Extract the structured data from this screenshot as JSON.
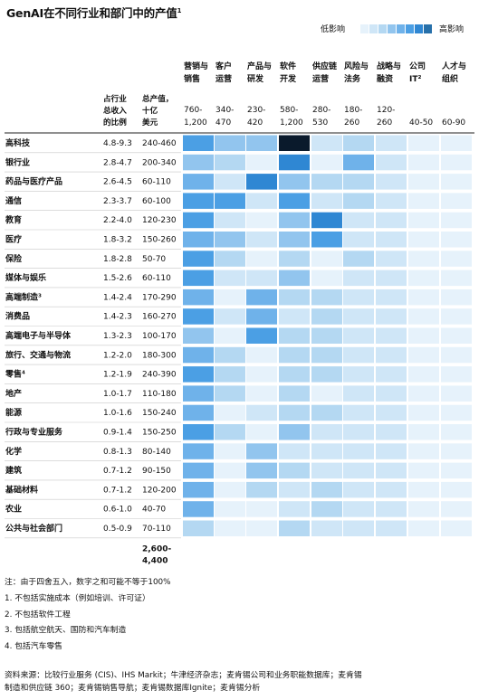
{
  "title": "GenAI在不同行业和部门中的产值",
  "title_sup": "1",
  "legend": {
    "low": "低影响",
    "high": "高影响",
    "colors": [
      "#e6f2fb",
      "#cfe6f7",
      "#b4d8f2",
      "#92c5ee",
      "#6fb2ea",
      "#4b9fe4",
      "#2f87d3",
      "#2770aa"
    ]
  },
  "header": {
    "share_label": [
      "占行业",
      "总收入",
      "的比例"
    ],
    "value_label": [
      "总产值，",
      "十亿",
      "美元"
    ]
  },
  "total_value": [
    "2,600-",
    "4,400"
  ],
  "chart_data": {
    "type": "heatmap",
    "title": "GenAI在不同行业和部门中的产值",
    "functions": [
      {
        "name": [
          "营销与",
          "销售"
        ],
        "range": [
          "760-",
          "1,200"
        ]
      },
      {
        "name": [
          "客户",
          "运营"
        ],
        "range": [
          "340-",
          "470"
        ]
      },
      {
        "name": [
          "产品与",
          "研发"
        ],
        "range": [
          "230-",
          "420"
        ]
      },
      {
        "name": [
          "软件",
          "开发"
        ],
        "range": [
          "580-",
          "1,200"
        ]
      },
      {
        "name": [
          "供应链",
          "运营"
        ],
        "range": [
          "280-",
          "530"
        ]
      },
      {
        "name": [
          "风险与",
          "法务"
        ],
        "range": [
          "180-",
          "260"
        ]
      },
      {
        "name": [
          "战略与",
          "融资"
        ],
        "range": [
          "120-",
          "260"
        ]
      },
      {
        "name": [
          "公司",
          "IT²"
        ],
        "range": [
          "",
          "40-50"
        ]
      },
      {
        "name": [
          "人才与",
          "组织"
        ],
        "range": [
          "",
          "60-90"
        ]
      }
    ],
    "rows": [
      {
        "industry": "高科技",
        "share": "4.8-9.3",
        "value": "240-460",
        "levels": [
          6,
          4,
          4,
          9,
          2,
          3,
          2,
          1,
          1
        ]
      },
      {
        "industry": "银行业",
        "share": "2.8-4.7",
        "value": "200-340",
        "levels": [
          4,
          3,
          1,
          7,
          1,
          5,
          2,
          1,
          1
        ]
      },
      {
        "industry": "药品与医疗产品",
        "share": "2.6-4.5",
        "value": "60-110",
        "levels": [
          5,
          2,
          7,
          4,
          3,
          3,
          2,
          1,
          1
        ]
      },
      {
        "industry": "通信",
        "share": "2.3-3.7",
        "value": "60-100",
        "levels": [
          6,
          6,
          2,
          6,
          2,
          3,
          2,
          1,
          1
        ]
      },
      {
        "industry": "教育",
        "share": "2.2-4.0",
        "value": "120-230",
        "levels": [
          6,
          2,
          1,
          4,
          7,
          2,
          2,
          1,
          1
        ]
      },
      {
        "industry": "医疗",
        "share": "1.8-3.2",
        "value": "150-260",
        "levels": [
          5,
          4,
          2,
          4,
          6,
          2,
          2,
          1,
          1
        ]
      },
      {
        "industry": "保险",
        "share": "1.8-2.8",
        "value": "50-70",
        "levels": [
          6,
          3,
          1,
          3,
          1,
          3,
          2,
          1,
          1
        ]
      },
      {
        "industry": "媒体与娱乐",
        "share": "1.5-2.6",
        "value": "60-110",
        "levels": [
          6,
          2,
          2,
          4,
          1,
          2,
          2,
          1,
          1
        ]
      },
      {
        "industry": "高端制造³",
        "share": "1.4-2.4",
        "value": "170-290",
        "levels": [
          5,
          1,
          5,
          3,
          3,
          2,
          2,
          1,
          1
        ]
      },
      {
        "industry": "消费品",
        "share": "1.4-2.3",
        "value": "160-270",
        "levels": [
          6,
          2,
          5,
          2,
          3,
          2,
          2,
          1,
          1
        ]
      },
      {
        "industry": "高端电子与半导体",
        "share": "1.3-2.3",
        "value": "100-170",
        "levels": [
          4,
          1,
          6,
          3,
          3,
          2,
          2,
          1,
          1
        ]
      },
      {
        "industry": "旅行、交通与物流",
        "share": "1.2-2.0",
        "value": "180-300",
        "levels": [
          5,
          3,
          1,
          3,
          3,
          2,
          2,
          1,
          1
        ]
      },
      {
        "industry": "零售⁴",
        "share": "1.2-1.9",
        "value": "240-390",
        "levels": [
          6,
          3,
          1,
          3,
          3,
          2,
          2,
          1,
          1
        ]
      },
      {
        "industry": "地产",
        "share": "1.0-1.7",
        "value": "110-180",
        "levels": [
          5,
          3,
          1,
          3,
          1,
          2,
          2,
          1,
          1
        ]
      },
      {
        "industry": "能源",
        "share": "1.0-1.6",
        "value": "150-240",
        "levels": [
          5,
          1,
          2,
          3,
          3,
          2,
          2,
          1,
          1
        ]
      },
      {
        "industry": "行政与专业服务",
        "share": "0.9-1.4",
        "value": "150-250",
        "levels": [
          6,
          3,
          1,
          4,
          2,
          2,
          2,
          1,
          1
        ]
      },
      {
        "industry": "化学",
        "share": "0.8-1.3",
        "value": "80-140",
        "levels": [
          5,
          1,
          4,
          2,
          2,
          2,
          2,
          1,
          1
        ]
      },
      {
        "industry": "建筑",
        "share": "0.7-1.2",
        "value": "90-150",
        "levels": [
          5,
          1,
          4,
          3,
          2,
          2,
          2,
          1,
          1
        ]
      },
      {
        "industry": "基础材料",
        "share": "0.7-1.2",
        "value": "120-200",
        "levels": [
          5,
          1,
          3,
          2,
          3,
          2,
          2,
          1,
          1
        ]
      },
      {
        "industry": "农业",
        "share": "0.6-1.0",
        "value": "40-70",
        "levels": [
          5,
          1,
          1,
          2,
          3,
          2,
          2,
          1,
          1
        ]
      },
      {
        "industry": "公共与社会部门",
        "share": "0.5-0.9",
        "value": "70-110",
        "levels": [
          3,
          1,
          1,
          3,
          2,
          2,
          2,
          1,
          1
        ]
      }
    ]
  },
  "notes": [
    "注：由于四舍五入，数字之和可能不等于100%",
    "1. 不包括实施成本（例如培训、许可证）",
    "2. 不包括软件工程",
    "3. 包括航空航天、国防和汽车制造",
    "4. 包括汽车零售"
  ],
  "source": [
    "资料来源：比较行业服务 (CIS)、IHS Markit；牛津经济杂志；麦肯锡公司和业务职能数据库；麦肯锡",
    "制造和供应链 360；麦肯锡销售导航；麦肯锡数据库Ignite；麦肯锡分析"
  ]
}
